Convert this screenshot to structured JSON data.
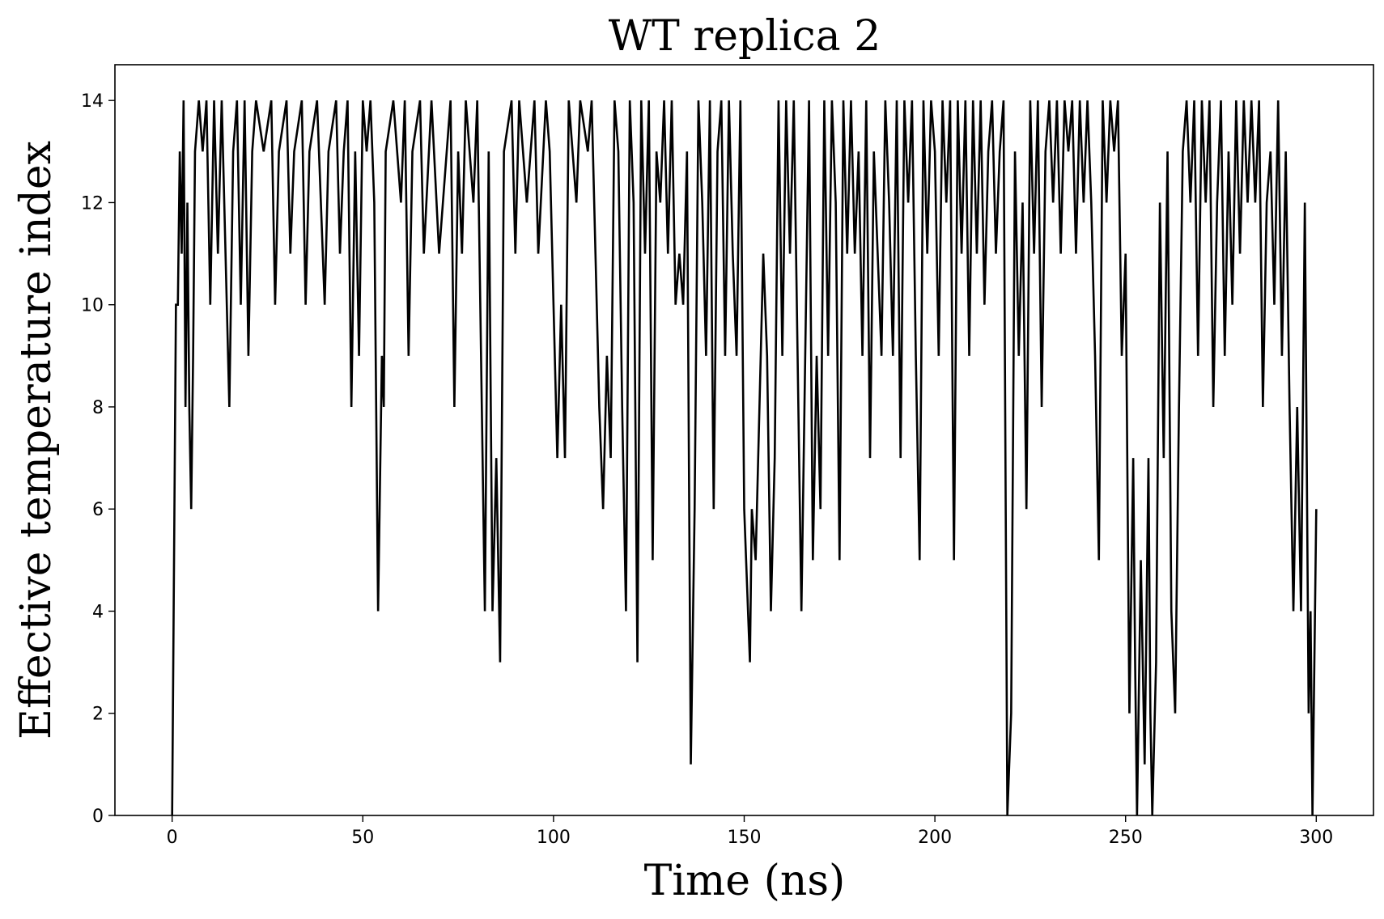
{
  "chart_data": {
    "type": "line",
    "title": "WT replica 2",
    "xlabel": "Time (ns)",
    "ylabel": "Effective temperature index",
    "xlim": [
      -15,
      315
    ],
    "ylim": [
      0,
      14.7
    ],
    "xticks": [
      0,
      50,
      100,
      150,
      200,
      250,
      300
    ],
    "yticks": [
      0,
      2,
      4,
      6,
      8,
      10,
      12,
      14
    ],
    "grid": false,
    "legend": "none",
    "series": [
      {
        "color": "#000000",
        "points": [
          [
            0,
            0
          ],
          [
            1,
            10
          ],
          [
            1.5,
            10
          ],
          [
            2,
            13
          ],
          [
            2.5,
            11
          ],
          [
            3,
            14
          ],
          [
            3.5,
            8
          ],
          [
            4,
            12
          ],
          [
            4.5,
            8
          ],
          [
            5,
            6
          ],
          [
            5.5,
            9
          ],
          [
            6,
            13
          ],
          [
            7,
            14
          ],
          [
            8,
            13
          ],
          [
            9,
            14
          ],
          [
            10,
            10
          ],
          [
            11,
            14
          ],
          [
            12,
            11
          ],
          [
            13,
            14
          ],
          [
            14,
            11
          ],
          [
            15,
            8
          ],
          [
            16,
            13
          ],
          [
            17,
            14
          ],
          [
            18,
            10
          ],
          [
            19,
            14
          ],
          [
            20,
            9
          ],
          [
            21,
            13
          ],
          [
            22,
            14
          ],
          [
            24,
            13
          ],
          [
            26,
            14
          ],
          [
            27,
            10
          ],
          [
            28,
            13
          ],
          [
            30,
            14
          ],
          [
            31,
            11
          ],
          [
            32,
            13
          ],
          [
            34,
            14
          ],
          [
            35,
            10
          ],
          [
            36,
            13
          ],
          [
            38,
            14
          ],
          [
            40,
            10
          ],
          [
            41,
            13
          ],
          [
            43,
            14
          ],
          [
            44,
            11
          ],
          [
            45,
            13
          ],
          [
            46,
            14
          ],
          [
            47,
            8
          ],
          [
            48,
            13
          ],
          [
            49,
            9
          ],
          [
            50,
            14
          ],
          [
            51,
            13
          ],
          [
            52,
            14
          ],
          [
            53,
            12
          ],
          [
            54,
            4
          ],
          [
            55,
            9
          ],
          [
            55.5,
            8
          ],
          [
            56,
            13
          ],
          [
            58,
            14
          ],
          [
            60,
            12
          ],
          [
            61,
            14
          ],
          [
            62,
            9
          ],
          [
            63,
            13
          ],
          [
            65,
            14
          ],
          [
            66,
            11
          ],
          [
            68,
            14
          ],
          [
            70,
            11
          ],
          [
            72,
            13
          ],
          [
            73,
            14
          ],
          [
            74,
            8
          ],
          [
            75,
            13
          ],
          [
            76,
            11
          ],
          [
            77,
            14
          ],
          [
            79,
            12
          ],
          [
            80,
            14
          ],
          [
            81,
            9
          ],
          [
            82,
            4
          ],
          [
            83,
            13
          ],
          [
            84,
            4
          ],
          [
            85,
            7
          ],
          [
            86,
            3
          ],
          [
            87,
            13
          ],
          [
            89,
            14
          ],
          [
            90,
            11
          ],
          [
            91,
            14
          ],
          [
            93,
            12
          ],
          [
            95,
            14
          ],
          [
            96,
            11
          ],
          [
            98,
            14
          ],
          [
            99,
            13
          ],
          [
            100,
            10
          ],
          [
            101,
            7
          ],
          [
            102,
            10
          ],
          [
            103,
            7
          ],
          [
            104,
            14
          ],
          [
            106,
            12
          ],
          [
            107,
            14
          ],
          [
            109,
            13
          ],
          [
            110,
            14
          ],
          [
            111,
            11
          ],
          [
            112,
            8
          ],
          [
            113,
            6
          ],
          [
            114,
            9
          ],
          [
            115,
            7
          ],
          [
            116,
            14
          ],
          [
            117,
            13
          ],
          [
            118,
            8
          ],
          [
            119,
            4
          ],
          [
            120,
            14
          ],
          [
            121,
            12
          ],
          [
            122,
            3
          ],
          [
            123,
            14
          ],
          [
            124,
            11
          ],
          [
            125,
            14
          ],
          [
            126,
            5
          ],
          [
            127,
            13
          ],
          [
            128,
            12
          ],
          [
            129,
            14
          ],
          [
            130,
            11
          ],
          [
            131,
            14
          ],
          [
            132,
            10
          ],
          [
            133,
            11
          ],
          [
            134,
            10
          ],
          [
            135,
            13
          ],
          [
            136,
            1
          ],
          [
            137,
            6
          ],
          [
            138,
            14
          ],
          [
            139,
            12
          ],
          [
            140,
            9
          ],
          [
            141,
            14
          ],
          [
            142,
            6
          ],
          [
            143,
            13
          ],
          [
            144,
            14
          ],
          [
            145,
            9
          ],
          [
            146,
            14
          ],
          [
            147,
            11
          ],
          [
            148,
            9
          ],
          [
            149,
            14
          ],
          [
            150,
            6
          ],
          [
            151,
            4
          ],
          [
            151.5,
            3
          ],
          [
            152,
            6
          ],
          [
            153,
            5
          ],
          [
            154,
            8
          ],
          [
            155,
            11
          ],
          [
            156,
            9
          ],
          [
            157,
            4
          ],
          [
            158,
            7
          ],
          [
            159,
            14
          ],
          [
            160,
            9
          ],
          [
            161,
            14
          ],
          [
            162,
            11
          ],
          [
            163,
            14
          ],
          [
            164,
            9
          ],
          [
            165,
            4
          ],
          [
            166,
            9
          ],
          [
            167,
            14
          ],
          [
            168,
            5
          ],
          [
            169,
            9
          ],
          [
            170,
            6
          ],
          [
            171,
            14
          ],
          [
            172,
            9
          ],
          [
            173,
            14
          ],
          [
            174,
            12
          ],
          [
            175,
            5
          ],
          [
            176,
            14
          ],
          [
            177,
            11
          ],
          [
            178,
            14
          ],
          [
            179,
            11
          ],
          [
            180,
            13
          ],
          [
            181,
            9
          ],
          [
            182,
            14
          ],
          [
            183,
            7
          ],
          [
            184,
            13
          ],
          [
            185,
            11
          ],
          [
            186,
            9
          ],
          [
            187,
            14
          ],
          [
            188,
            12
          ],
          [
            189,
            9
          ],
          [
            190,
            14
          ],
          [
            191,
            7
          ],
          [
            192,
            14
          ],
          [
            193,
            12
          ],
          [
            194,
            14
          ],
          [
            195,
            9
          ],
          [
            196,
            5
          ],
          [
            197,
            14
          ],
          [
            198,
            11
          ],
          [
            199,
            14
          ],
          [
            200,
            13
          ],
          [
            201,
            9
          ],
          [
            202,
            14
          ],
          [
            203,
            12
          ],
          [
            204,
            14
          ],
          [
            205,
            5
          ],
          [
            206,
            14
          ],
          [
            207,
            11
          ],
          [
            208,
            14
          ],
          [
            209,
            9
          ],
          [
            210,
            14
          ],
          [
            211,
            11
          ],
          [
            212,
            14
          ],
          [
            213,
            10
          ],
          [
            214,
            13
          ],
          [
            215,
            14
          ],
          [
            216,
            11
          ],
          [
            217,
            13
          ],
          [
            218,
            14
          ],
          [
            219,
            0
          ],
          [
            220,
            2
          ],
          [
            221,
            13
          ],
          [
            222,
            9
          ],
          [
            223,
            12
          ],
          [
            224,
            6
          ],
          [
            225,
            14
          ],
          [
            226,
            11
          ],
          [
            227,
            14
          ],
          [
            228,
            8
          ],
          [
            229,
            13
          ],
          [
            230,
            14
          ],
          [
            231,
            12
          ],
          [
            232,
            14
          ],
          [
            233,
            11
          ],
          [
            234,
            14
          ],
          [
            235,
            13
          ],
          [
            236,
            14
          ],
          [
            237,
            11
          ],
          [
            238,
            14
          ],
          [
            239,
            12
          ],
          [
            240,
            14
          ],
          [
            241,
            12
          ],
          [
            242,
            9
          ],
          [
            243,
            5
          ],
          [
            244,
            14
          ],
          [
            245,
            12
          ],
          [
            246,
            14
          ],
          [
            247,
            13
          ],
          [
            248,
            14
          ],
          [
            249,
            9
          ],
          [
            250,
            11
          ],
          [
            251,
            2
          ],
          [
            252,
            7
          ],
          [
            252.5,
            3
          ],
          [
            253,
            0
          ],
          [
            254,
            5
          ],
          [
            255,
            1
          ],
          [
            256,
            7
          ],
          [
            256.5,
            2
          ],
          [
            257,
            0
          ],
          [
            258,
            3
          ],
          [
            259,
            12
          ],
          [
            260,
            7
          ],
          [
            261,
            13
          ],
          [
            262,
            4
          ],
          [
            263,
            2
          ],
          [
            264,
            8
          ],
          [
            265,
            13
          ],
          [
            266,
            14
          ],
          [
            267,
            12
          ],
          [
            268,
            14
          ],
          [
            269,
            9
          ],
          [
            270,
            14
          ],
          [
            271,
            12
          ],
          [
            272,
            14
          ],
          [
            273,
            8
          ],
          [
            274,
            12
          ],
          [
            275,
            14
          ],
          [
            276,
            9
          ],
          [
            277,
            13
          ],
          [
            278,
            10
          ],
          [
            279,
            14
          ],
          [
            280,
            11
          ],
          [
            281,
            14
          ],
          [
            282,
            12
          ],
          [
            283,
            14
          ],
          [
            284,
            12
          ],
          [
            285,
            14
          ],
          [
            286,
            8
          ],
          [
            287,
            12
          ],
          [
            288,
            13
          ],
          [
            289,
            10
          ],
          [
            290,
            14
          ],
          [
            291,
            9
          ],
          [
            292,
            13
          ],
          [
            293,
            8
          ],
          [
            294,
            4
          ],
          [
            295,
            8
          ],
          [
            296,
            4
          ],
          [
            297,
            12
          ],
          [
            298,
            2
          ],
          [
            298.5,
            4
          ],
          [
            299,
            0
          ],
          [
            300,
            6
          ]
        ]
      }
    ]
  }
}
